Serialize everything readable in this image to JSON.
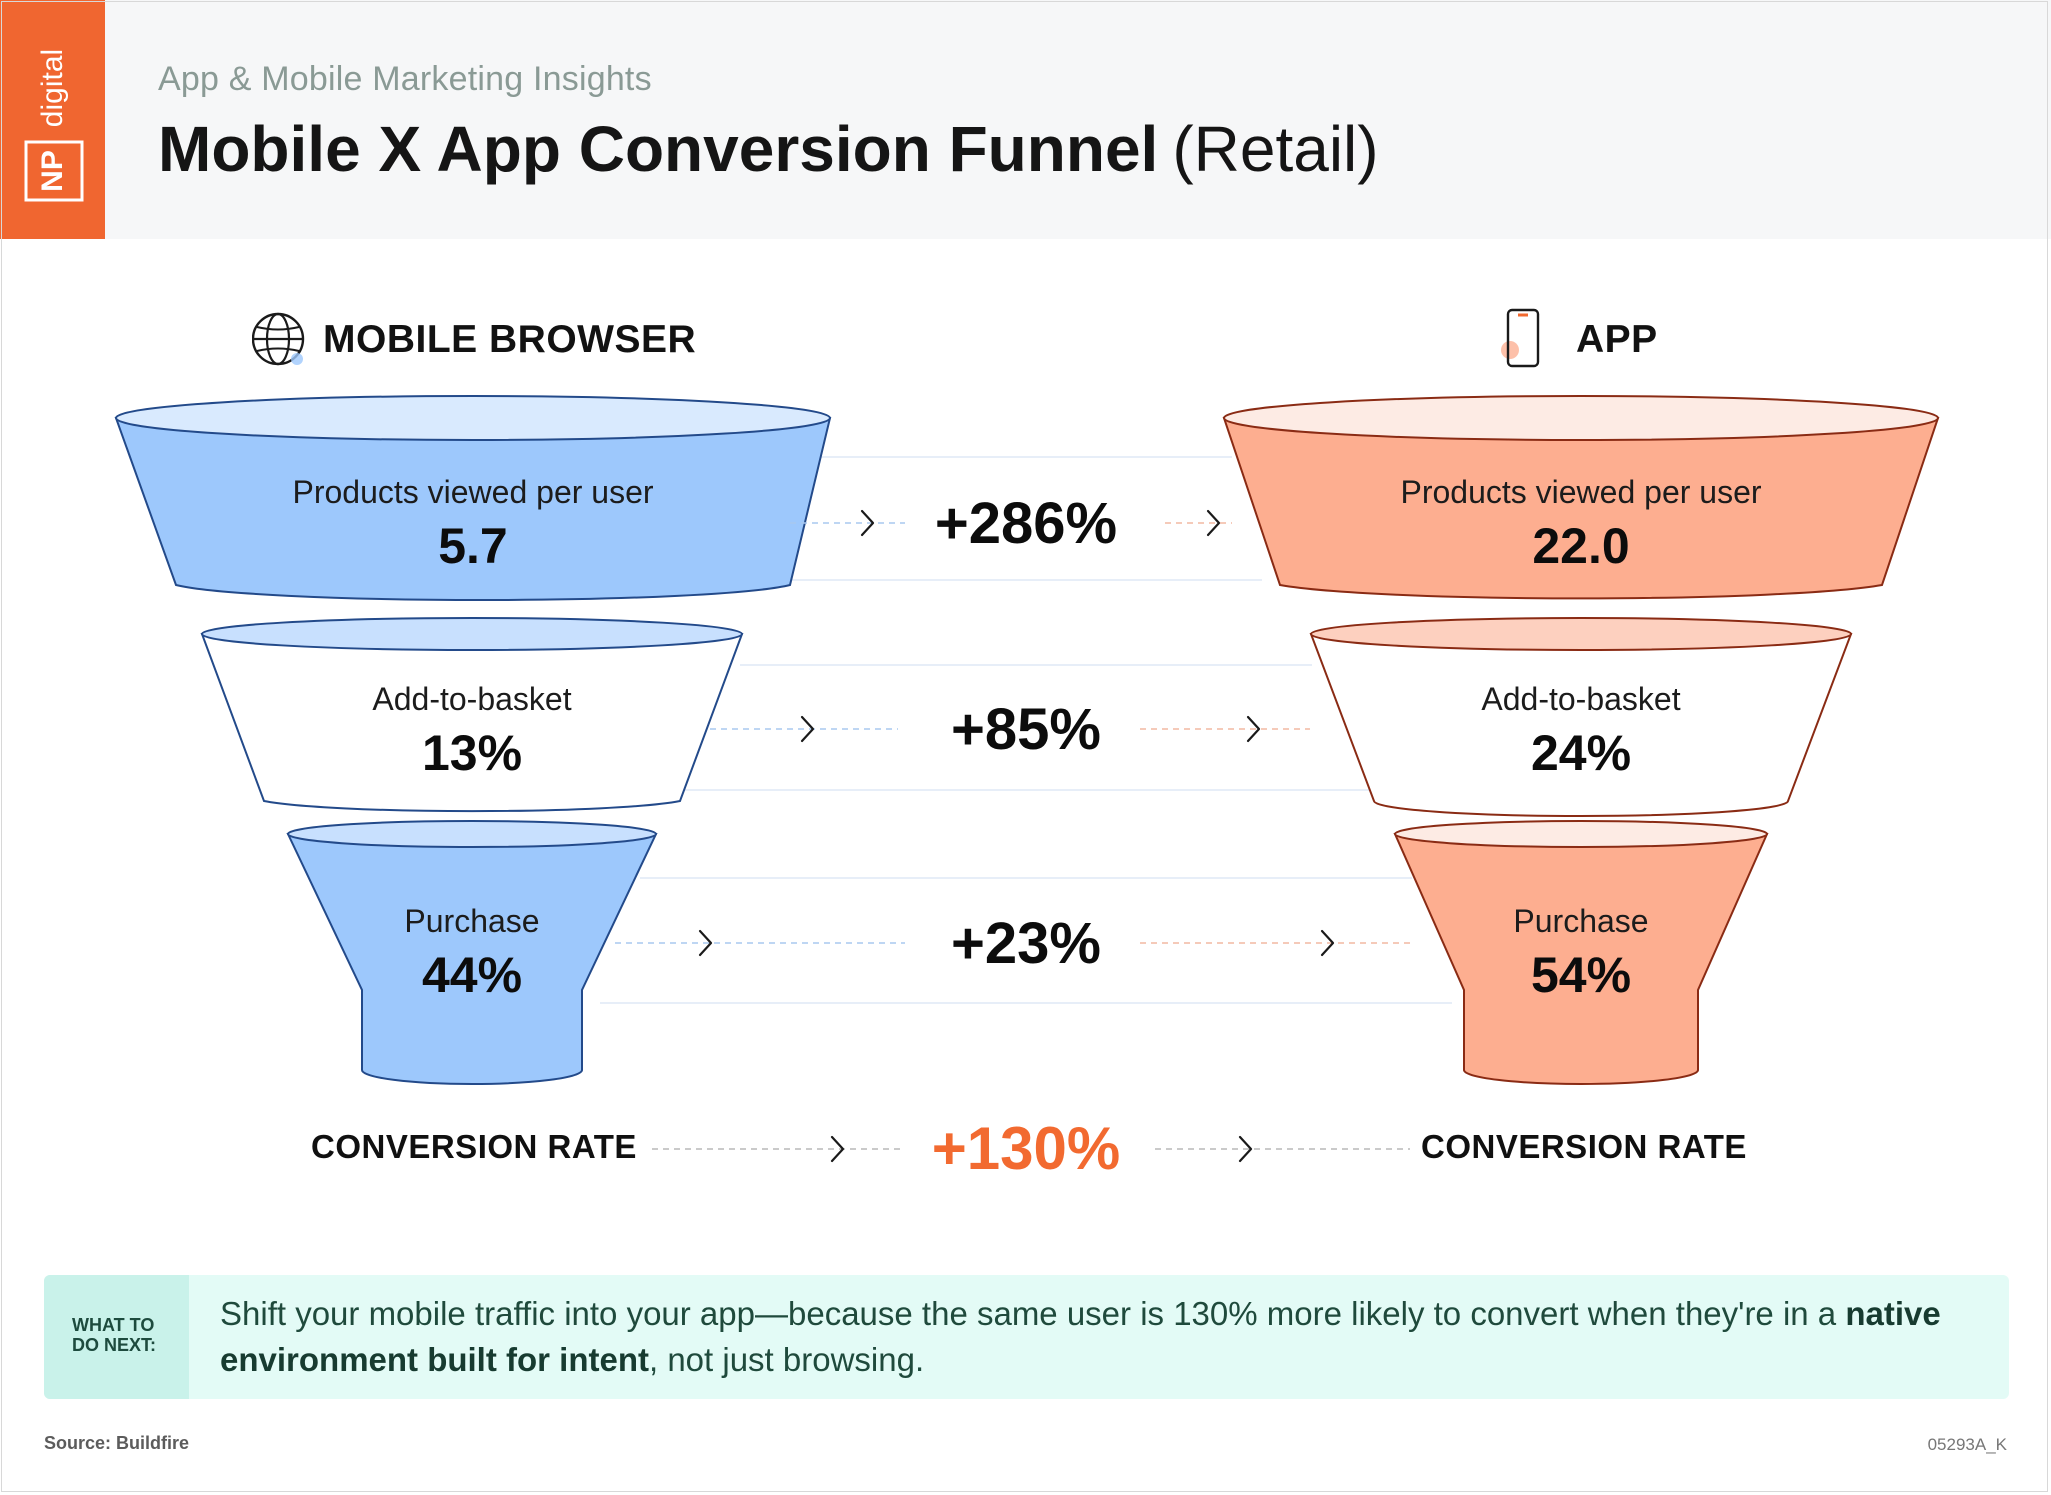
{
  "header": {
    "logo_np": "NP",
    "logo_digital": "digital",
    "subtitle": "App & Mobile Marketing Insights",
    "title": "Mobile X App Conversion Funnel",
    "title_suffix": "(Retail)"
  },
  "columns": {
    "browser": {
      "label": "MOBILE BROWSER",
      "icon": "globe-icon"
    },
    "app": {
      "label": "APP",
      "icon": "smartphone-icon"
    }
  },
  "colors": {
    "browser_fill": "#9dc8fc",
    "browser_light": "#c8e0fe",
    "app_fill": "#fdae90",
    "app_light": "#fdd0bf",
    "accent_orange": "#f26a30",
    "callout_bg": "#e3fbf6"
  },
  "stages": [
    {
      "label": "Products viewed per user",
      "browser": "5.7",
      "app": "22.0",
      "delta": "+286%"
    },
    {
      "label": "Add-to-basket",
      "browser": "13%",
      "app": "24%",
      "delta": "+85%"
    },
    {
      "label": "Purchase",
      "browser": "44%",
      "app": "54%",
      "delta": "+23%"
    }
  ],
  "conversion": {
    "left_label": "CONVERSION RATE",
    "right_label": "CONVERSION RATE",
    "delta": "+130%"
  },
  "callout": {
    "tag": "WHAT TO DO NEXT:",
    "text_before": "Shift your mobile traffic into your app—because the same user is 130% more likely to convert when they're in a ",
    "text_bold": "native environment built for intent",
    "text_after": ", not just browsing."
  },
  "footer": {
    "source": "Source: Buildfire",
    "code": "05293A_K"
  }
}
